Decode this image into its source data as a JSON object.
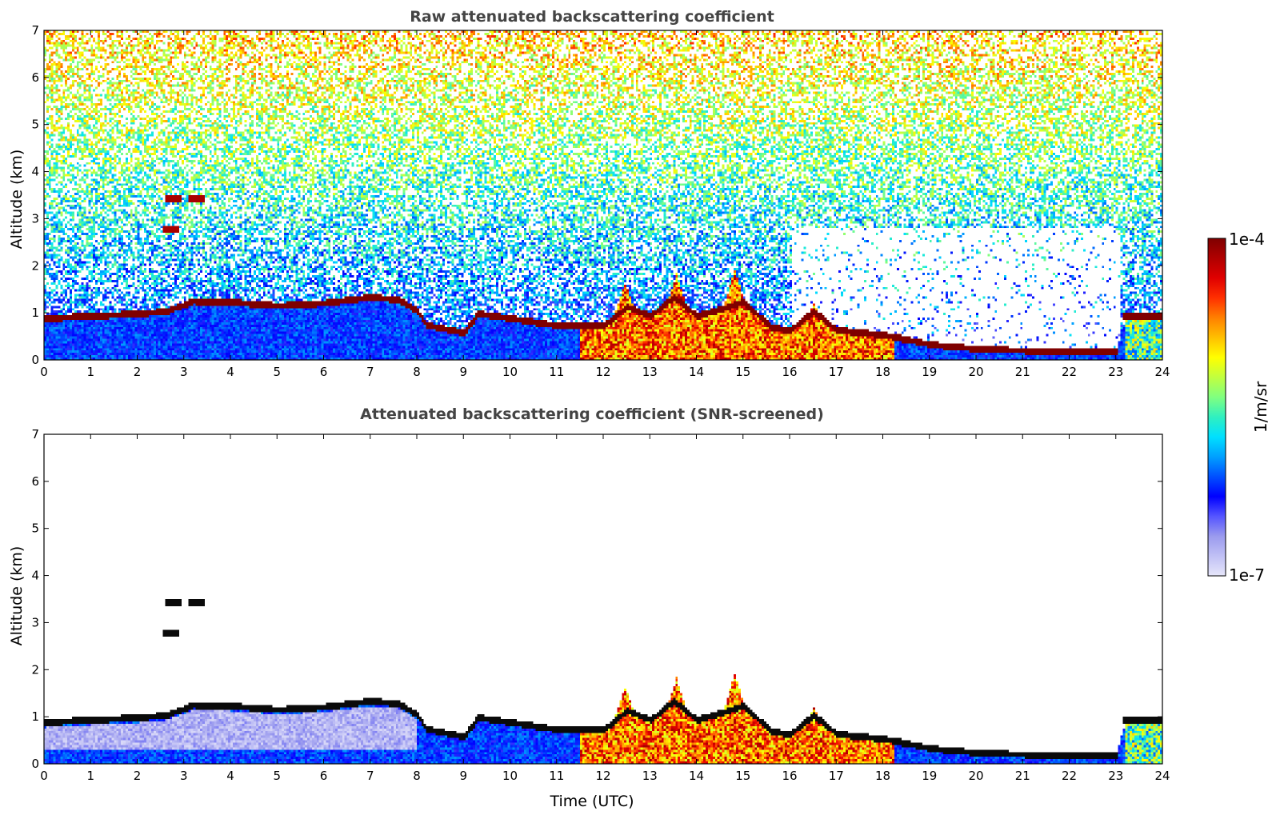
{
  "chart_data": [
    {
      "type": "heatmap",
      "title": "Raw attenuated backscattering coefficient",
      "xlabel": "",
      "ylabel": "Altitude (km)",
      "xlim": [
        0,
        24
      ],
      "ylim": [
        0,
        7
      ],
      "xticks": [
        "0",
        "1",
        "2",
        "3",
        "4",
        "5",
        "6",
        "7",
        "8",
        "9",
        "10",
        "11",
        "12",
        "13",
        "14",
        "15",
        "16",
        "17",
        "18",
        "19",
        "20",
        "21",
        "22",
        "23",
        "24"
      ],
      "yticks": [
        "0",
        "1",
        "2",
        "3",
        "4",
        "5",
        "6",
        "7"
      ],
      "screened": false,
      "layer_top_km": [
        [
          0,
          0.85
        ],
        [
          1,
          0.9
        ],
        [
          2,
          0.95
        ],
        [
          2.6,
          1.0
        ],
        [
          3.2,
          1.22
        ],
        [
          4,
          1.2
        ],
        [
          5,
          1.12
        ],
        [
          6,
          1.18
        ],
        [
          7,
          1.3
        ],
        [
          7.6,
          1.25
        ],
        [
          8,
          1.0
        ],
        [
          8.2,
          0.7
        ],
        [
          9,
          0.55
        ],
        [
          9.3,
          0.95
        ],
        [
          10,
          0.85
        ],
        [
          11,
          0.7
        ],
        [
          12,
          0.7
        ],
        [
          12.5,
          1.1
        ],
        [
          13,
          0.9
        ],
        [
          13.5,
          1.3
        ],
        [
          14,
          0.9
        ],
        [
          15,
          1.2
        ],
        [
          15.6,
          0.65
        ],
        [
          16,
          0.6
        ],
        [
          16.5,
          1.0
        ],
        [
          17,
          0.6
        ],
        [
          18,
          0.5
        ],
        [
          19,
          0.3
        ],
        [
          20,
          0.2
        ],
        [
          21,
          0.17
        ],
        [
          22,
          0.15
        ],
        [
          23.0,
          0.15
        ],
        [
          23.2,
          0.95
        ],
        [
          24,
          0.95
        ]
      ],
      "aerosol_events": [
        [
          12.45,
          1.6
        ],
        [
          13.55,
          1.8
        ],
        [
          14.8,
          1.9
        ],
        [
          16.5,
          1.2
        ]
      ],
      "elevated_features": [
        [
          2.75,
          3.4
        ],
        [
          3.25,
          3.4
        ],
        [
          2.7,
          2.75
        ]
      ]
    },
    {
      "type": "heatmap",
      "title": "Attenuated backscattering coefficient (SNR-screened)",
      "xlabel": "Time (UTC)",
      "ylabel": "Altitude (km)",
      "xlim": [
        0,
        24
      ],
      "ylim": [
        0,
        7
      ],
      "xticks": [
        "0",
        "1",
        "2",
        "3",
        "4",
        "5",
        "6",
        "7",
        "8",
        "9",
        "10",
        "11",
        "12",
        "13",
        "14",
        "15",
        "16",
        "17",
        "18",
        "19",
        "20",
        "21",
        "22",
        "23",
        "24"
      ],
      "yticks": [
        "0",
        "1",
        "2",
        "3",
        "4",
        "5",
        "6",
        "7"
      ],
      "screened": true
    }
  ],
  "colorbar": {
    "label": "1/m/sr",
    "max_label": "1e-4",
    "min_label": "1e-7",
    "scale": "log",
    "range": [
      1e-07,
      0.0001
    ],
    "colormap": [
      "#e6e6fa",
      "#c0c0f5",
      "#9a9aee",
      "#5555ff",
      "#0000ff",
      "#0050ff",
      "#00a0ff",
      "#00e0ff",
      "#30f0c0",
      "#80ff80",
      "#c0ff40",
      "#ffff00",
      "#ffc000",
      "#ff8000",
      "#ff3000",
      "#e00000",
      "#b00000",
      "#7f0000"
    ]
  }
}
